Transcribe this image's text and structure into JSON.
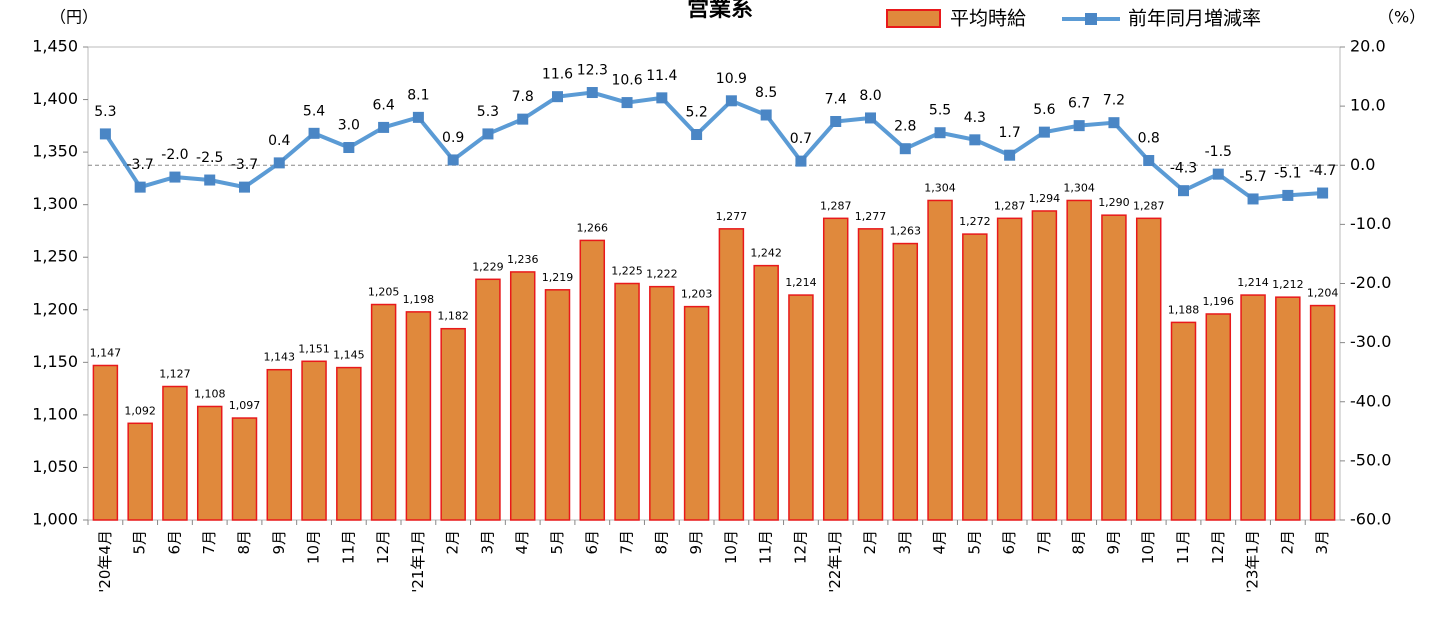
{
  "chart_data": {
    "type": "bar_line",
    "title": "営業系",
    "ylabel": "（円）",
    "y2label": "（%）",
    "categories": [
      "'20年4月",
      "5月",
      "6月",
      "7月",
      "8月",
      "9月",
      "10月",
      "11月",
      "12月",
      "'21年1月",
      "2月",
      "3月",
      "4月",
      "5月",
      "6月",
      "7月",
      "8月",
      "9月",
      "10月",
      "11月",
      "12月",
      "'22年1月",
      "2月",
      "3月",
      "4月",
      "5月",
      "6月",
      "7月",
      "8月",
      "9月",
      "10月",
      "11月",
      "12月",
      "'23年1月",
      "2月",
      "3月"
    ],
    "series": [
      {
        "name": "平均時給",
        "type": "bar",
        "color": "#e0893c",
        "edgecolor": "#e8191b",
        "values": [
          1147,
          1092,
          1127,
          1108,
          1097,
          1143,
          1151,
          1145,
          1205,
          1198,
          1182,
          1229,
          1236,
          1219,
          1266,
          1225,
          1222,
          1203,
          1277,
          1242,
          1214,
          1287,
          1277,
          1263,
          1304,
          1272,
          1287,
          1294,
          1304,
          1290,
          1287,
          1188,
          1196,
          1214,
          1212,
          1204
        ],
        "value_labels": [
          "1,147",
          "1,092",
          "1,127",
          "1,108",
          "1,097",
          "1,143",
          "1,151",
          "1,145",
          "1,205",
          "1,198",
          "1,182",
          "1,229",
          "1,236",
          "1,219",
          "1,266",
          "1,225",
          "1,222",
          "1,203",
          "1,277",
          "1,242",
          "1,214",
          "1,287",
          "1,277",
          "1,263",
          "1,304",
          "1,272",
          "1,287",
          "1,294",
          "1,304",
          "1,290",
          "1,287",
          "1,188",
          "1,196",
          "1,214",
          "1,212",
          "1,204"
        ]
      },
      {
        "name": "前年同月増減率",
        "type": "line",
        "axis": "y2",
        "color": "#5b9bd5",
        "marker_color": "#4a86c5",
        "values": [
          5.3,
          -3.7,
          -2.0,
          -2.5,
          -3.7,
          0.4,
          5.4,
          3.0,
          6.4,
          8.1,
          0.9,
          5.3,
          7.8,
          11.6,
          12.3,
          10.6,
          11.4,
          5.2,
          10.9,
          8.5,
          0.7,
          7.4,
          8.0,
          2.8,
          5.5,
          4.3,
          1.7,
          5.6,
          6.7,
          7.2,
          0.8,
          -4.3,
          -1.5,
          -5.7,
          -5.1,
          -4.7
        ],
        "value_labels": [
          "5.3",
          "-3.7",
          "-2.0",
          "-2.5",
          "-3.7",
          "0.4",
          "5.4",
          "3.0",
          "6.4",
          "8.1",
          "0.9",
          "5.3",
          "7.8",
          "11.6",
          "12.3",
          "10.6",
          "11.4",
          "5.2",
          "10.9",
          "8.5",
          "0.7",
          "7.4",
          "8.0",
          "2.8",
          "5.5",
          "4.3",
          "1.7",
          "5.6",
          "6.7",
          "7.2",
          "0.8",
          "-4.3",
          "-1.5",
          "-5.7",
          "-5.1",
          "-4.7"
        ]
      }
    ],
    "ylim": [
      1000,
      1450
    ],
    "yticks": [
      {
        "value": 1000,
        "label": "1,000"
      },
      {
        "value": 1050,
        "label": "1,050"
      },
      {
        "value": 1100,
        "label": "1,100"
      },
      {
        "value": 1150,
        "label": "1,150"
      },
      {
        "value": 1200,
        "label": "1,200"
      },
      {
        "value": 1250,
        "label": "1,250"
      },
      {
        "value": 1300,
        "label": "1,300"
      },
      {
        "value": 1350,
        "label": "1,350"
      },
      {
        "value": 1400,
        "label": "1,400"
      },
      {
        "value": 1450,
        "label": "1,450"
      }
    ],
    "y2lim": [
      -60,
      20
    ],
    "y2ticks": [
      {
        "value": -60,
        "label": "-60.0"
      },
      {
        "value": -50,
        "label": "-50.0"
      },
      {
        "value": -40,
        "label": "-40.0"
      },
      {
        "value": -30,
        "label": "-30.0"
      },
      {
        "value": -20,
        "label": "-20.0"
      },
      {
        "value": -10,
        "label": "-10.0"
      },
      {
        "value": 0,
        "label": "0.0"
      },
      {
        "value": 10,
        "label": "10.0"
      },
      {
        "value": 20,
        "label": "20.0"
      }
    ],
    "legend": "top-right"
  }
}
